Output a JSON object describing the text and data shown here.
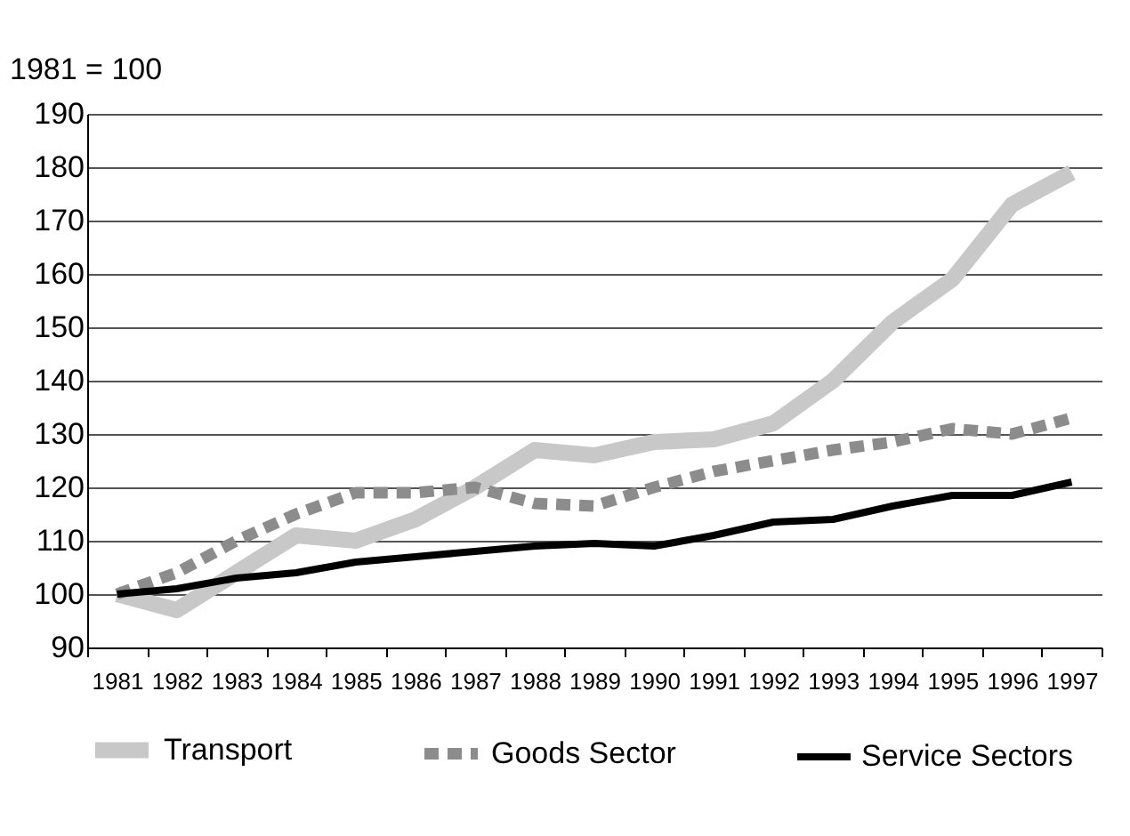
{
  "chart_data": {
    "type": "line",
    "ylabel": "1981 = 100",
    "categories": [
      "1981",
      "1982",
      "1983",
      "1984",
      "1985",
      "1986",
      "1987",
      "1988",
      "1989",
      "1990",
      "1991",
      "1992",
      "1993",
      "1994",
      "1995",
      "1996",
      "1997"
    ],
    "series": [
      {
        "name": "Transport",
        "color": "#c8c8c8",
        "line_style": "solid",
        "values": [
          100,
          97,
          104,
          111,
          110,
          114,
          120,
          127,
          126,
          128.5,
          129,
          132,
          140,
          151,
          159,
          173,
          179
        ]
      },
      {
        "name": "Goods Sector",
        "color": "#8c8c8c",
        "line_style": "dashed",
        "values": [
          100,
          104,
          110,
          115,
          119,
          119,
          120,
          117,
          116.5,
          120,
          123,
          125,
          127,
          128.5,
          131,
          130,
          133
        ]
      },
      {
        "name": "Service Sectors",
        "color": "#000000",
        "line_style": "solid",
        "values": [
          100,
          101,
          103,
          104,
          106,
          107,
          108,
          109,
          109.5,
          109,
          111,
          113.5,
          114,
          116.5,
          118.5,
          118.5,
          121
        ]
      }
    ],
    "ylim": [
      90,
      190
    ],
    "yticks": [
      90,
      100,
      110,
      120,
      130,
      140,
      150,
      160,
      170,
      180,
      190
    ],
    "grid": "y",
    "legend": "bottom",
    "marker": "none"
  }
}
